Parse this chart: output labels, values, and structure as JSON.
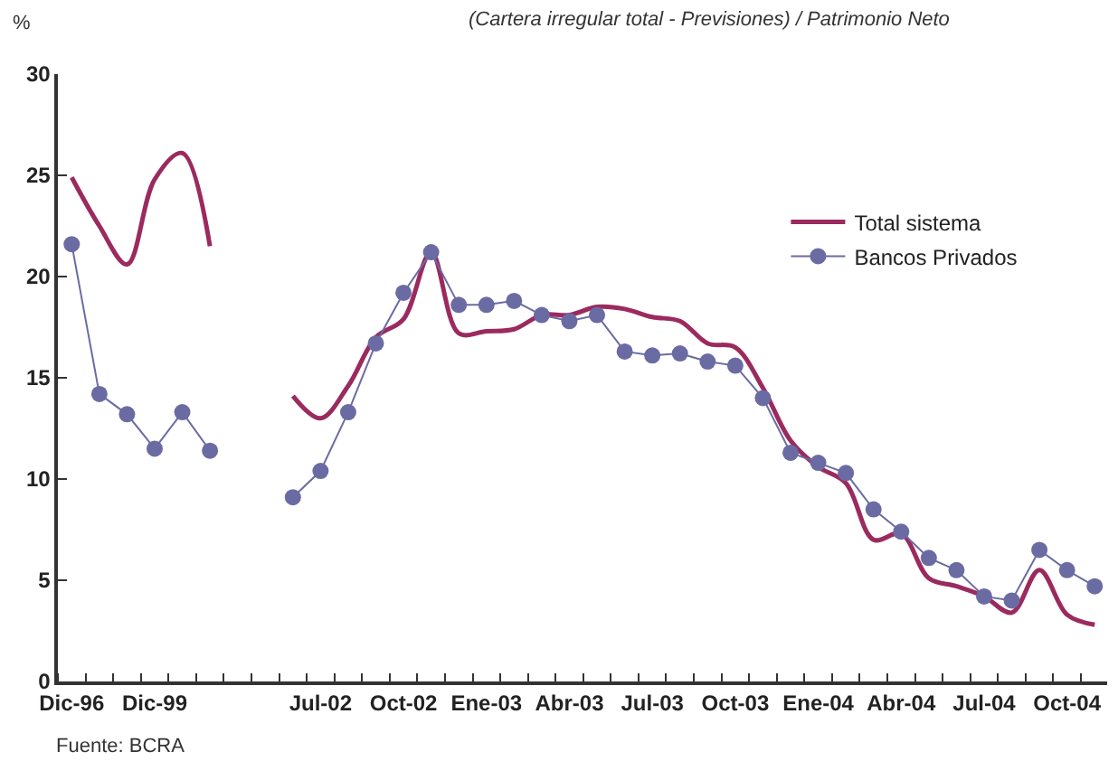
{
  "chart_data": {
    "type": "line",
    "subtitle": "(Cartera irregular total - Previsiones) / Patrimonio Neto",
    "ylabel": "%",
    "categories": [
      "Dic-96",
      null,
      null,
      "Dic-99",
      null,
      null,
      null,
      null,
      null,
      "Jul-02",
      null,
      null,
      "Oct-02",
      null,
      null,
      "Ene-03",
      null,
      null,
      "Abr-03",
      null,
      null,
      "Jul-03",
      null,
      null,
      "Oct-03",
      null,
      null,
      "Ene-04",
      null,
      null,
      "Abr-04",
      null,
      null,
      "Jul-04",
      null,
      null,
      "Oct-04",
      null
    ],
    "series": [
      {
        "name": "Total sistema",
        "color": "#9b2a5e",
        "marker": "none",
        "values": [
          24.9,
          22.5,
          20.6,
          24.8,
          26.1,
          21.5,
          null,
          null,
          14.1,
          13.0,
          14.6,
          17.0,
          17.9,
          21.2,
          17.2,
          17.3,
          17.4,
          18.1,
          18.1,
          18.5,
          18.4,
          18.0,
          17.8,
          16.7,
          16.5,
          14.5,
          11.9,
          10.6,
          9.8,
          7.0,
          7.3,
          5.1,
          4.7,
          4.2,
          3.4,
          5.5,
          3.3,
          2.8
        ]
      },
      {
        "name": "Bancos Privados",
        "color": "#6b6ba3",
        "marker": "circle",
        "values": [
          21.6,
          14.2,
          13.2,
          11.5,
          13.3,
          11.4,
          null,
          null,
          9.1,
          10.4,
          13.3,
          16.7,
          19.2,
          21.2,
          18.6,
          18.6,
          18.8,
          18.1,
          17.8,
          18.1,
          16.3,
          16.1,
          16.2,
          15.8,
          15.6,
          14.0,
          11.3,
          10.8,
          10.3,
          8.5,
          7.4,
          6.1,
          5.5,
          4.2,
          4.0,
          6.5,
          5.5,
          4.7
        ]
      }
    ],
    "ylim": [
      0,
      30
    ],
    "yticks": [
      0,
      5,
      10,
      15,
      20,
      25,
      30
    ],
    "legend": "top right",
    "annotations": [
      "Fuente: BCRA"
    ]
  }
}
